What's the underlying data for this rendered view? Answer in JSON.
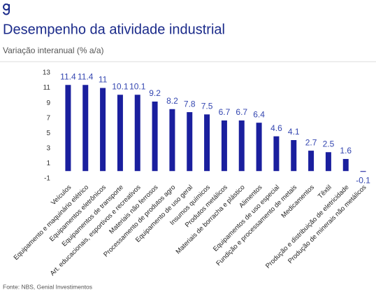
{
  "chart_data": {
    "type": "bar",
    "title": "Desempenho da atividade industrial",
    "subtitle": "Variação interanual (% a/a)",
    "source": "Fonte: NBS, Genial Investimentos",
    "categories": [
      "Veículos",
      "Equipamento e maquinário elétrico",
      "Equipamentos eletrônicos",
      "Equipamentos de transporte",
      "Art. educacionais, esportivos e recreativos",
      "Materiais não ferrosos",
      "Processamento de produtos agro",
      "Equipamento de uso geral",
      "Insumos químicos",
      "Produtos metálicos",
      "Materiais de borracha e plástico",
      "Alimentos",
      "Equipamentos de uso especial",
      "Fundição e processamento de metais",
      "Medicamentos",
      "Têxtil",
      "Produção e distribuição de eletricidade",
      "Produção de minerais não metálicos"
    ],
    "values": [
      11.4,
      11.4,
      11,
      10.1,
      10.1,
      9.2,
      8.2,
      7.8,
      7.5,
      6.7,
      6.7,
      6.4,
      4.6,
      4.1,
      2.7,
      2.5,
      1.6,
      -0.1
    ],
    "color": "#1a1f9e",
    "label_color": "#3446b0",
    "ylim": [
      -1,
      13
    ],
    "yticks": [
      13,
      11,
      9,
      7,
      5,
      3,
      1,
      -1
    ],
    "grid": false
  }
}
